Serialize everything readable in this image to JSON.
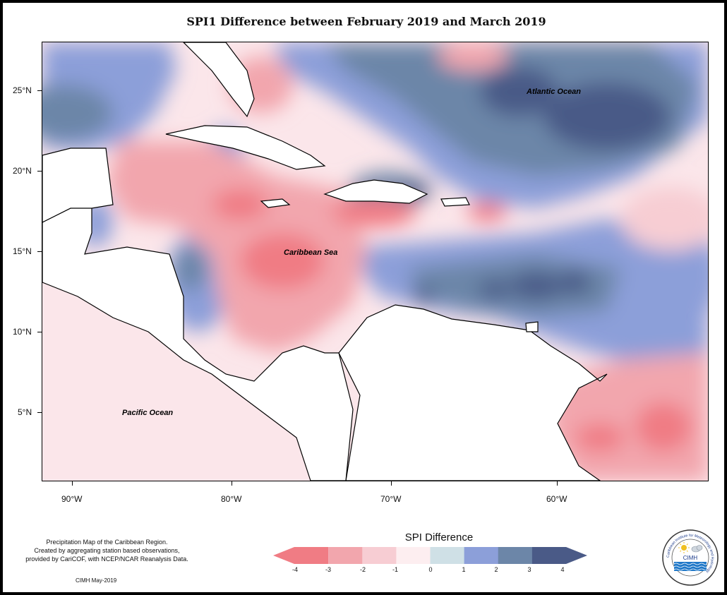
{
  "title": "SPI1 Difference between February 2019 and March 2019",
  "map": {
    "region": "Caribbean",
    "lon_range": [
      -92,
      -50
    ],
    "lat_range": [
      1,
      28
    ],
    "ocean_labels": [
      "Atlantic Ocean",
      "Caribbean Sea",
      "Pacific Ocean"
    ],
    "y_ticks": [
      "25°N",
      "20°N",
      "15°N",
      "10°N",
      "5°N"
    ],
    "x_ticks": [
      "90°W",
      "80°W",
      "70°W",
      "60°W"
    ]
  },
  "legend": {
    "title": "SPI Difference",
    "tick_labels": [
      "-4",
      "-3",
      "-2",
      "-1",
      "0",
      "1",
      "2",
      "3",
      "4"
    ],
    "colors": [
      "#f07c84",
      "#f2a6ad",
      "#f7cdd3",
      "#fdeef0",
      "#cfe0e6",
      "#8c9fd9",
      "#6c86a8",
      "#4a5a87"
    ]
  },
  "credit": {
    "lines": [
      "Precipitation Map of the Caribbean Region.",
      "Created by aggregating station based observations,",
      "provided by CariCOF, with NCEP/NCAR Reanalysis Data."
    ],
    "date": "CIMH May-2019"
  },
  "logo": {
    "text": "CIMH",
    "ring_text": "Caribbean Institute for Meteorology and Hydrology"
  }
}
